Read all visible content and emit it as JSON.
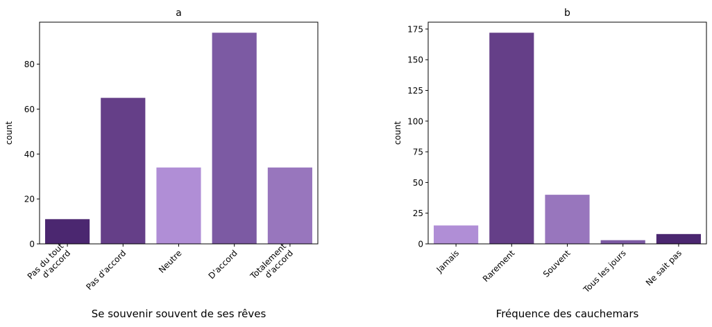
{
  "chart_data": [
    {
      "type": "bar",
      "title": "a",
      "xlabel": "Se souvenir souvent de ses rêves",
      "ylabel": "count",
      "categories": [
        [
          "Pas du tout",
          "d'accord"
        ],
        [
          "Pas d'accord"
        ],
        [
          "Neutre"
        ],
        [
          "D'accord"
        ],
        [
          "Totalement",
          "d'accord"
        ]
      ],
      "values": [
        11,
        65,
        34,
        94,
        34
      ],
      "colors": [
        "#4b2770",
        "#653f88",
        "#b08ed6",
        "#7c5aa3",
        "#9876bd"
      ],
      "ylim": [
        0,
        98.7
      ],
      "yticks": [
        0,
        20,
        40,
        60,
        80
      ],
      "grid": false
    },
    {
      "type": "bar",
      "title": "b",
      "xlabel": "Fréquence des cauchemars",
      "ylabel": "count",
      "categories": [
        [
          "Jamais"
        ],
        [
          "Rarement"
        ],
        [
          "Souvent"
        ],
        [
          "Tous les jours"
        ],
        [
          "Ne sait pas"
        ]
      ],
      "values": [
        15,
        172,
        40,
        3,
        8
      ],
      "colors": [
        "#b08ed6",
        "#653f88",
        "#9876bd",
        "#7c5aa3",
        "#4b2770"
      ],
      "ylim": [
        0,
        180.6
      ],
      "yticks": [
        0,
        25,
        50,
        75,
        100,
        125,
        150,
        175
      ],
      "grid": false
    }
  ]
}
